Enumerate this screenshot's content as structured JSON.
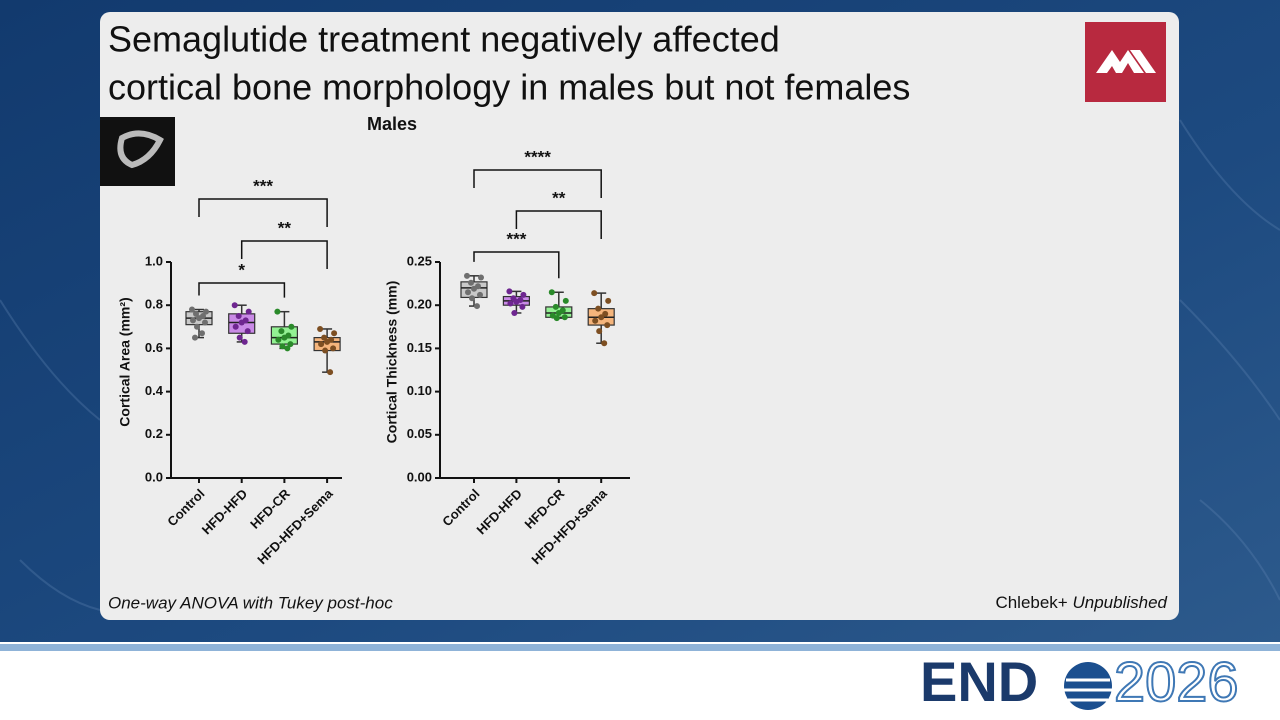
{
  "title_lines": [
    "Semaglutide treatment negatively affected",
    "cortical bone morphology in males but not females"
  ],
  "panel_title": "Males",
  "footnote_left": "One-way ANOVA with Tukey post-hoc",
  "footnote_right": {
    "author": "Chlebek+",
    "status": "Unpublished"
  },
  "logo": {
    "left": "END",
    "right": "2026"
  },
  "chart_data": [
    {
      "type": "box",
      "y_label": "Cortical Area (mm²)",
      "categories": [
        "Control",
        "HFD-HFD",
        "HFD-CR",
        "HFD-HFD+Sema"
      ],
      "box_colors": [
        "#c9c9c9",
        "#c98ae6",
        "#93f193",
        "#f5b57c"
      ],
      "point_colors": [
        "#6f6f6f",
        "#6e2690",
        "#2a8a2a",
        "#7d4f22"
      ],
      "boxes": [
        {
          "min": 0.65,
          "q1": 0.71,
          "median": 0.74,
          "q3": 0.77,
          "max": 0.78,
          "points": [
            0.78,
            0.77,
            0.76,
            0.75,
            0.74,
            0.73,
            0.72,
            0.7,
            0.67,
            0.65
          ]
        },
        {
          "min": 0.63,
          "q1": 0.67,
          "median": 0.72,
          "q3": 0.76,
          "max": 0.8,
          "points": [
            0.8,
            0.77,
            0.75,
            0.73,
            0.72,
            0.7,
            0.68,
            0.65,
            0.63
          ]
        },
        {
          "min": 0.6,
          "q1": 0.62,
          "median": 0.65,
          "q3": 0.7,
          "max": 0.77,
          "points": [
            0.77,
            0.7,
            0.68,
            0.66,
            0.65,
            0.64,
            0.62,
            0.61,
            0.6
          ]
        },
        {
          "min": 0.49,
          "q1": 0.59,
          "median": 0.63,
          "q3": 0.65,
          "max": 0.69,
          "points": [
            0.69,
            0.67,
            0.65,
            0.64,
            0.63,
            0.62,
            0.6,
            0.59,
            0.49
          ]
        }
      ],
      "ylim": [
        0,
        1.0
      ],
      "yticks": [
        {
          "value": 0,
          "label": "0.0"
        },
        {
          "value": 0.2,
          "label": "0.2"
        },
        {
          "value": 0.4,
          "label": "0.4"
        },
        {
          "value": 0.6,
          "label": "0.6"
        },
        {
          "value": 0.8,
          "label": "0.8"
        },
        {
          "value": 1.0,
          "label": "1.0"
        }
      ],
      "brackets": [
        {
          "groups": [
            "Control",
            "HFD-CR"
          ],
          "label": "*"
        },
        {
          "groups": [
            "HFD-HFD",
            "HFD-HFD+Sema"
          ],
          "label": "**"
        },
        {
          "groups": [
            "Control",
            "HFD-HFD+Sema"
          ],
          "label": "***"
        }
      ]
    },
    {
      "type": "box",
      "y_label": "Cortical Thickness (mm)",
      "categories": [
        "Control",
        "HFD-HFD",
        "HFD-CR",
        "HFD-HFD+Sema"
      ],
      "box_colors": [
        "#c9c9c9",
        "#c98ae6",
        "#93f193",
        "#f5b57c"
      ],
      "point_colors": [
        "#6f6f6f",
        "#6e2690",
        "#2a8a2a",
        "#7d4f22"
      ],
      "boxes": [
        {
          "min": 0.199,
          "q1": 0.209,
          "median": 0.22,
          "q3": 0.227,
          "max": 0.234,
          "points": [
            0.234,
            0.232,
            0.226,
            0.222,
            0.219,
            0.215,
            0.212,
            0.208,
            0.199
          ]
        },
        {
          "min": 0.191,
          "q1": 0.2,
          "median": 0.205,
          "q3": 0.21,
          "max": 0.216,
          "points": [
            0.216,
            0.212,
            0.208,
            0.206,
            0.204,
            0.202,
            0.198,
            0.191
          ]
        },
        {
          "min": 0.185,
          "q1": 0.186,
          "median": 0.191,
          "q3": 0.198,
          "max": 0.215,
          "points": [
            0.215,
            0.205,
            0.198,
            0.194,
            0.191,
            0.188,
            0.186,
            0.185
          ]
        },
        {
          "min": 0.156,
          "q1": 0.177,
          "median": 0.186,
          "q3": 0.196,
          "max": 0.214,
          "points": [
            0.214,
            0.205,
            0.196,
            0.19,
            0.186,
            0.182,
            0.177,
            0.17,
            0.156
          ]
        }
      ],
      "ylim": [
        0,
        0.25
      ],
      "yticks": [
        {
          "value": 0,
          "label": "0.00"
        },
        {
          "value": 0.05,
          "label": "0.05"
        },
        {
          "value": 0.1,
          "label": "0.10"
        },
        {
          "value": 0.15,
          "label": "0.15"
        },
        {
          "value": 0.2,
          "label": "0.20"
        },
        {
          "value": 0.25,
          "label": "0.25"
        }
      ],
      "brackets": [
        {
          "groups": [
            "Control",
            "HFD-CR"
          ],
          "label": "***"
        },
        {
          "groups": [
            "HFD-HFD",
            "HFD-HFD+Sema"
          ],
          "label": "**"
        },
        {
          "groups": [
            "Control",
            "HFD-HFD+Sema"
          ],
          "label": "****"
        }
      ]
    }
  ]
}
